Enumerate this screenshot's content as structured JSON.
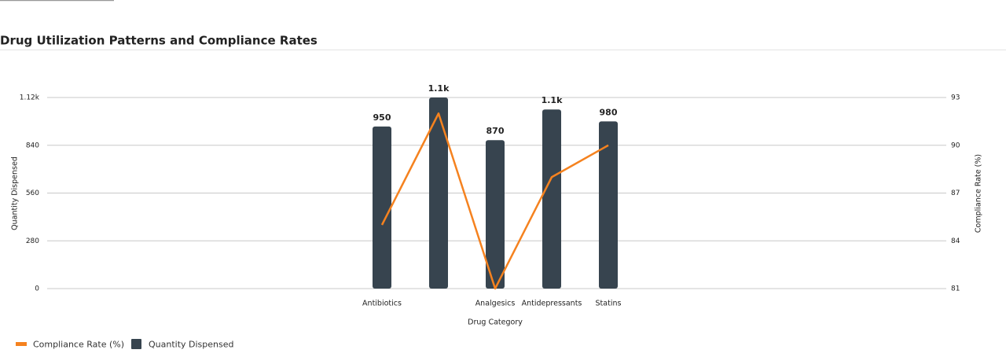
{
  "chart_data": {
    "type": "bar",
    "title": "Drug Utilization Patterns and Compliance Rates",
    "x_label": "Drug Category",
    "y_label": "Quantity Dispensed",
    "y2_label": "Compliance Rate (%)",
    "categories": [
      "Antibiotics",
      null,
      "Analgesics",
      "Antidepressants",
      "Statins"
    ],
    "series": [
      {
        "name": "Compliance Rate (%)",
        "type": "line",
        "axis": "y2",
        "color": "#f5821f",
        "values": [
          85,
          92,
          81,
          88,
          90
        ]
      },
      {
        "name": "Quantity Dispensed",
        "type": "bar",
        "color": "#37444f",
        "values": [
          950,
          1120,
          870,
          1050,
          980
        ],
        "value_labels": [
          "950",
          "1.1k",
          "870",
          "1.1k",
          "980"
        ]
      }
    ],
    "ylim": [
      0,
      1120
    ],
    "yticks": [
      0,
      280,
      560,
      840,
      {
        "value": 1120,
        "label": "1.12k"
      }
    ],
    "y2lim": [
      81,
      93
    ],
    "y2ticks": [
      81,
      84,
      87,
      90,
      93
    ],
    "grid": true,
    "legend": "bottom-left"
  }
}
